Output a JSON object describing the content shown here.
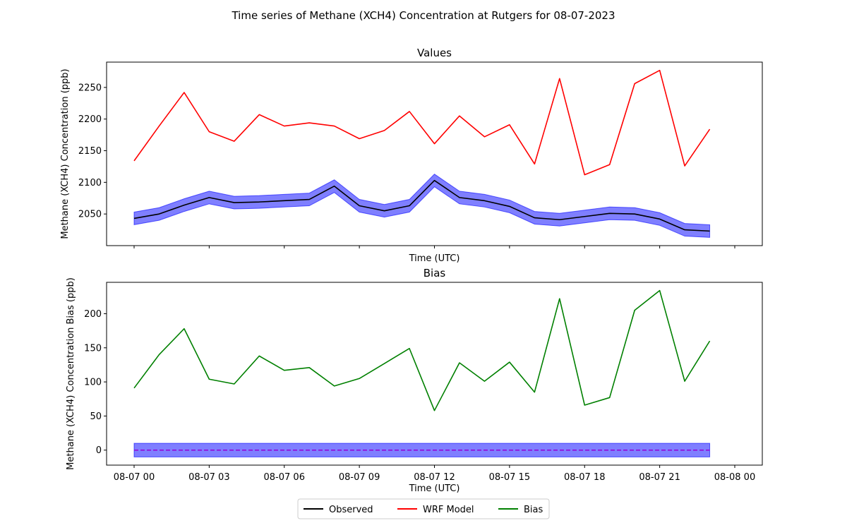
{
  "figure": {
    "suptitle": "Time series of Methane (XCH4) Concentration at Rutgers for 08-07-2023"
  },
  "chart_data": [
    {
      "type": "line",
      "title": "Values",
      "xlabel": "Time (UTC)",
      "ylabel": "Methane (XCH4) Concentration (ppb)",
      "ylim": [
        2000,
        2290
      ],
      "yticks": [
        2050,
        2100,
        2150,
        2200,
        2250
      ],
      "xlim_hours": [
        -1.1,
        25.1
      ],
      "xticks_hours": [
        0,
        3,
        6,
        9,
        12,
        15,
        18,
        21,
        24
      ],
      "show_xticklabels": false,
      "grid": false,
      "x": [
        0,
        1,
        2,
        3,
        4,
        5,
        6,
        7,
        8,
        9,
        10,
        11,
        12,
        13,
        14,
        15,
        16,
        17,
        18,
        19,
        20,
        21,
        22,
        23
      ],
      "series": [
        {
          "name": "WRF Model",
          "color": "#ff0000",
          "values": [
            2134,
            2189,
            2242,
            2180,
            2165,
            2207,
            2189,
            2194,
            2189,
            2169,
            2182,
            2212,
            2161,
            2205,
            2172,
            2191,
            2129,
            2264,
            2112,
            2128,
            2256,
            2277,
            2126,
            2184
          ]
        },
        {
          "name": "Observed",
          "color": "#000000",
          "band_color": "#0000ff",
          "band_halfwidth": 10,
          "values": [
            2043,
            2050,
            2064,
            2076,
            2068,
            2069,
            2071,
            2073,
            2094,
            2063,
            2055,
            2063,
            2103,
            2076,
            2071,
            2062,
            2044,
            2041,
            2046,
            2051,
            2050,
            2042,
            2025,
            2023
          ]
        }
      ]
    },
    {
      "type": "line",
      "title": "Bias",
      "xlabel": "Time (UTC)",
      "ylabel": "Methane (XCH4) Concentration Bias (ppb)",
      "ylim": [
        -22,
        246
      ],
      "yticks": [
        0,
        50,
        100,
        150,
        200
      ],
      "xlim_hours": [
        -1.1,
        25.1
      ],
      "xticks_hours": [
        0,
        3,
        6,
        9,
        12,
        15,
        18,
        21,
        24
      ],
      "xticklabels": [
        "08-07 00",
        "08-07 03",
        "08-07 06",
        "08-07 09",
        "08-07 12",
        "08-07 15",
        "08-07 18",
        "08-07 21",
        "08-08 00"
      ],
      "grid": false,
      "x": [
        0,
        1,
        2,
        3,
        4,
        5,
        6,
        7,
        8,
        9,
        10,
        11,
        12,
        13,
        14,
        15,
        16,
        17,
        18,
        19,
        20,
        21,
        22,
        23
      ],
      "series": [
        {
          "name": "Bias",
          "color": "#008000",
          "values": [
            91,
            140,
            178,
            104,
            97,
            138,
            117,
            121,
            94,
            105,
            127,
            149,
            58,
            128,
            101,
            129,
            85,
            222,
            66,
            77,
            205,
            234,
            101,
            160
          ]
        }
      ],
      "zero_line": {
        "value": 0,
        "color": "#9400d3",
        "band_color": "#0000ff",
        "band_halfwidth": 10
      }
    }
  ],
  "legend": {
    "placement": "bottom-center",
    "entries": [
      {
        "label": "Observed",
        "color": "#000000"
      },
      {
        "label": "WRF Model",
        "color": "#ff0000"
      },
      {
        "label": "Bias",
        "color": "#008000"
      }
    ]
  }
}
